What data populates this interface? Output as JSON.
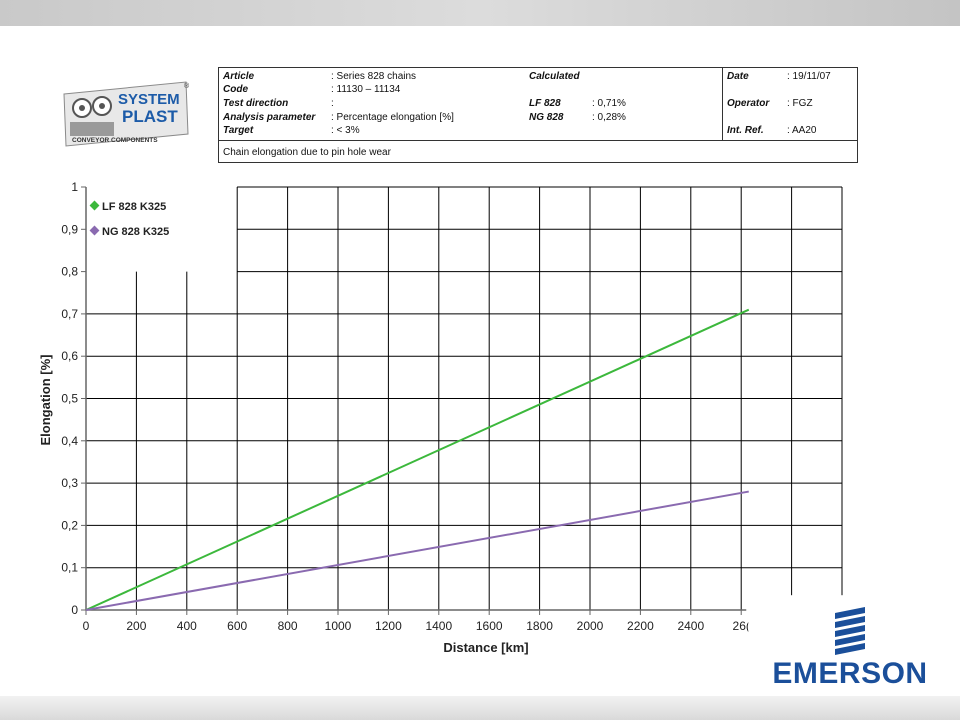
{
  "logo": {
    "line1": "SYSTEM",
    "line2": "PLAST",
    "tagline": "CONVEYOR COMPONENTS",
    "registered": "®"
  },
  "info": {
    "article_label": "Article",
    "article_value": ": Series 828 chains",
    "code_label": "Code",
    "code_value": ": 11130 – 11134",
    "test_direction_label": "Test direction",
    "test_direction_value": ":",
    "analysis_label": "Analysis parameter",
    "analysis_value": ": Percentage elongation [%]",
    "target_label": "Target",
    "target_value": ": < 3%",
    "calculated_label": "Calculated",
    "lf_label": "LF 828",
    "lf_value": ": 0,71%",
    "ng_label": "NG 828",
    "ng_value": ": 0,28%",
    "date_label": "Date",
    "date_value": ": 19/11/07",
    "operator_label": "Operator",
    "operator_value": ": FGZ",
    "intref_label": "Int. Ref.",
    "intref_value": ": AA20",
    "description": "Chain elongation due to pin hole wear"
  },
  "chart_data": {
    "type": "line",
    "xlabel": "Distance [km]",
    "ylabel": "Elongation [%]",
    "xlim": [
      0,
      3000
    ],
    "ylim": [
      0,
      1
    ],
    "x_ticks": [
      "0",
      "200",
      "400",
      "600",
      "800",
      "1000",
      "1200",
      "1400",
      "1600",
      "1800",
      "2000",
      "2200",
      "2400",
      "26("
    ],
    "y_ticks": [
      "0",
      "0,1",
      "0,2",
      "0,3",
      "0,4",
      "0,5",
      "0,6",
      "0,7",
      "0,8",
      "0,9",
      "1"
    ],
    "legend_position": "top-left",
    "grid": true,
    "series": [
      {
        "name": "LF 828  K325",
        "color": "#3cb83c",
        "x": [
          0,
          2630
        ],
        "y": [
          0,
          0.71
        ]
      },
      {
        "name": "NG 828  K325",
        "color": "#8a6ab0",
        "x": [
          0,
          2630
        ],
        "y": [
          0,
          0.28
        ]
      }
    ]
  },
  "brand": {
    "name": "EMERSON",
    "color": "#1b4f9a"
  }
}
